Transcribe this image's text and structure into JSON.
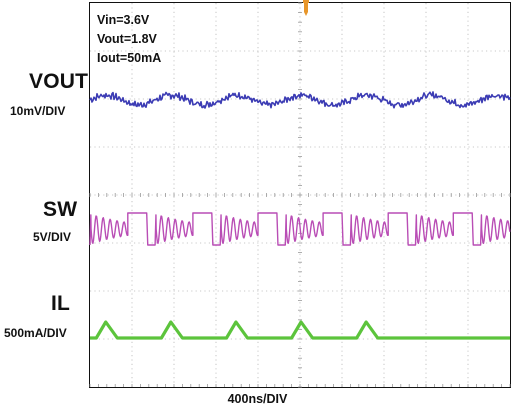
{
  "chart_data": {
    "type": "line",
    "title": "",
    "conditions": [
      "Vin=3.6V",
      "Vout=1.8V",
      "Iout=50mA"
    ],
    "xlabel": "400ns/DIV",
    "time_per_div_ns": 400,
    "divisions_x": 10,
    "divisions_y": 8,
    "grid": true,
    "trigger_marker": "T",
    "series": [
      {
        "name": "VOUT",
        "scale": "10mV/DIV",
        "color": "#3c3cb4",
        "period_ns": 620,
        "time_ns": [
          0,
          155,
          310,
          465,
          620,
          775,
          930,
          1085,
          1240,
          1395,
          1550,
          1705,
          1860,
          2015,
          2170,
          2325,
          2480,
          2635,
          2790,
          2945,
          3100,
          3255,
          3410,
          3565,
          3720,
          3875,
          4000
        ],
        "mv": [
          0,
          -2,
          1,
          -1,
          0,
          2,
          3,
          0,
          -1,
          -2,
          1,
          2,
          0,
          -1,
          1,
          -3,
          1,
          2,
          0,
          -1,
          2,
          -2,
          1,
          2,
          0,
          -2,
          1
        ],
        "ripple_mv_pp": 6
      },
      {
        "name": "SW",
        "scale": "5V/DIV",
        "color": "#b94db5",
        "period_ns": 620,
        "high_v": 1.8,
        "low_v": 0,
        "ringing_v_pp": 6
      },
      {
        "name": "IL",
        "scale": "500mA/DIV",
        "color": "#5cc43c",
        "period_ns": 620,
        "peak_ma": 400,
        "valley_ma": 0,
        "peak_times_ns": [
          150,
          770,
          1390,
          2010,
          2630
        ]
      }
    ]
  }
}
